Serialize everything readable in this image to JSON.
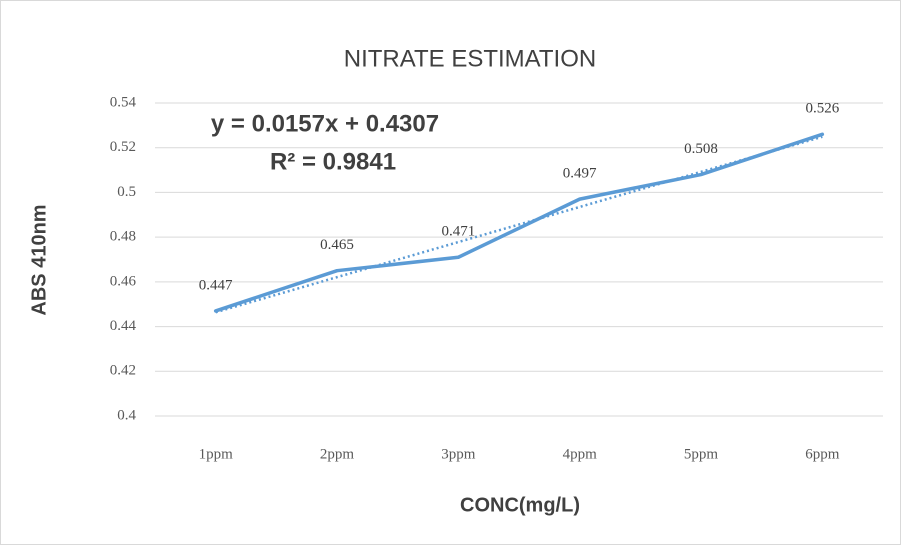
{
  "chart_data": {
    "type": "line",
    "title": "NITRATE ESTIMATION",
    "x_label": "CONC(mg/L)",
    "y_label": "ABS 410nm",
    "categories": [
      "1ppm",
      "2ppm",
      "3ppm",
      "4ppm",
      "5ppm",
      "6ppm"
    ],
    "values": [
      0.447,
      0.465,
      0.471,
      0.497,
      0.508,
      0.526
    ],
    "color": "#5b9bd5",
    "ylim": [
      0.4,
      0.54
    ],
    "yticks": [
      0.4,
      0.42,
      0.44,
      0.46,
      0.48,
      0.5,
      0.52,
      0.54
    ],
    "grid": true,
    "trendline": {
      "slope": 0.0157,
      "intercept": 0.4307,
      "equation": "y = 0.0157x + 0.4307",
      "r_squared": "R² = 0.9841"
    }
  }
}
